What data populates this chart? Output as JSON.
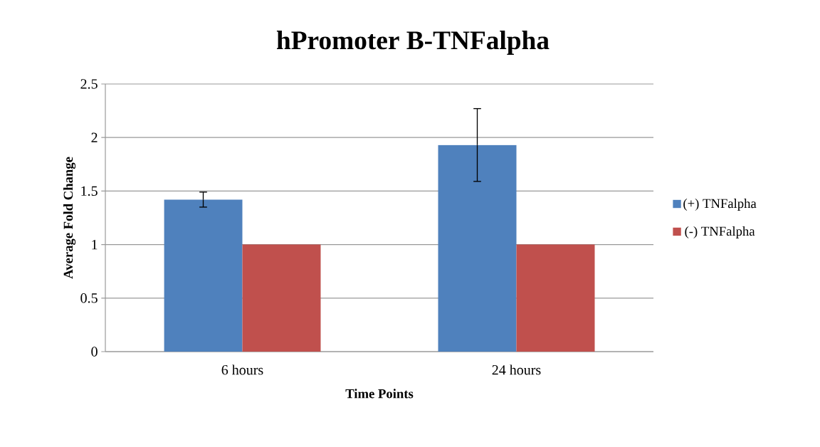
{
  "chart_data": {
    "type": "bar",
    "title": "hPromoter B-TNFalpha",
    "xlabel": "Time Points",
    "ylabel": "Average Fold Change",
    "categories": [
      "6 hours",
      "24 hours"
    ],
    "series": [
      {
        "name": "(+) TNFalpha",
        "color": "#4f81bd",
        "values": [
          1.42,
          1.93
        ],
        "errors": [
          0.07,
          0.34
        ]
      },
      {
        "name": "(-) TNFalpha",
        "color": "#c0504d",
        "values": [
          1,
          1
        ]
      }
    ],
    "ylim": [
      0,
      2.5
    ],
    "yticks": [
      0,
      0.5,
      1,
      1.5,
      2,
      2.5
    ],
    "grid": "y",
    "legend": "right"
  }
}
